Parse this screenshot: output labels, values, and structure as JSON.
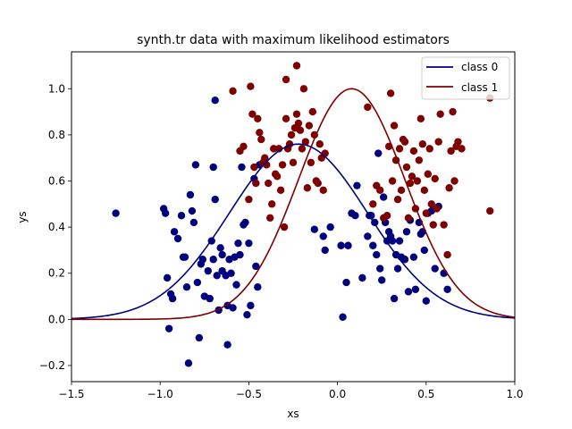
{
  "chart_data": {
    "type": "scatter",
    "title": "synth.tr data with maximum likelihood estimators",
    "xlabel": "xs",
    "ylabel": "ys",
    "xlim": [
      -1.5,
      1.0
    ],
    "ylim": [
      -0.27,
      1.16
    ],
    "x_ticks": [
      -1.5,
      -1.0,
      -0.5,
      0.0,
      0.5,
      1.0
    ],
    "y_ticks": [
      -0.2,
      0.0,
      0.2,
      0.4,
      0.6,
      0.8,
      1.0
    ],
    "x_tick_labels": [
      "−1.5",
      "−1.0",
      "−0.5",
      "0.0",
      "0.5",
      "1.0"
    ],
    "y_tick_labels": [
      "−0.2",
      "0.0",
      "0.2",
      "0.4",
      "0.6",
      "0.8",
      "1.0"
    ],
    "grid": false,
    "legend_position": "top-right",
    "series": [
      {
        "name": "class 0",
        "color": "#00007f",
        "curve": {
          "type": "gaussian",
          "amplitude": 0.76,
          "mean": -0.22,
          "sd": 0.39
        },
        "points": [
          [
            -1.25,
            0.46
          ],
          [
            -0.98,
            0.48
          ],
          [
            -0.97,
            0.46
          ],
          [
            -0.96,
            0.18
          ],
          [
            -0.95,
            -0.04
          ],
          [
            -0.94,
            0.11
          ],
          [
            -0.93,
            0.09
          ],
          [
            -0.92,
            0.38
          ],
          [
            -0.9,
            0.35
          ],
          [
            -0.88,
            0.45
          ],
          [
            -0.87,
            0.27
          ],
          [
            -0.86,
            0.27
          ],
          [
            -0.85,
            0.14
          ],
          [
            -0.84,
            -0.19
          ],
          [
            -0.83,
            0.54
          ],
          [
            -0.82,
            0.47
          ],
          [
            -0.81,
            0.42
          ],
          [
            -0.8,
            0.67
          ],
          [
            -0.79,
            0.16
          ],
          [
            -0.78,
            -0.08
          ],
          [
            -0.77,
            0.24
          ],
          [
            -0.76,
            0.26
          ],
          [
            -0.75,
            0.1
          ],
          [
            -0.73,
            0.21
          ],
          [
            -0.72,
            0.09
          ],
          [
            -0.71,
            0.34
          ],
          [
            -0.7,
            0.26
          ],
          [
            -0.7,
            0.66
          ],
          [
            -0.69,
            0.52
          ],
          [
            -0.69,
            0.95
          ],
          [
            -0.68,
            0.19
          ],
          [
            -0.67,
            0.04
          ],
          [
            -0.66,
            0.31
          ],
          [
            -0.65,
            0.21
          ],
          [
            -0.65,
            0.28
          ],
          [
            -0.63,
            0.19
          ],
          [
            -0.62,
            0.06
          ],
          [
            -0.62,
            -0.11
          ],
          [
            -0.61,
            0.26
          ],
          [
            -0.6,
            0.2
          ],
          [
            -0.59,
            0.05
          ],
          [
            -0.58,
            0.27
          ],
          [
            -0.57,
            0.15
          ],
          [
            -0.56,
            0.33
          ],
          [
            -0.55,
            0.28
          ],
          [
            -0.54,
            0.66
          ],
          [
            -0.53,
            0.41
          ],
          [
            -0.52,
            0.42
          ],
          [
            -0.51,
            0.02
          ],
          [
            -0.5,
            0.33
          ],
          [
            -0.49,
            0.06
          ],
          [
            -0.47,
            0.61
          ],
          [
            -0.46,
            0.23
          ],
          [
            -0.45,
            0.14
          ],
          [
            -0.44,
            0.67
          ],
          [
            -0.13,
            0.39
          ],
          [
            -0.08,
            0.36
          ],
          [
            -0.07,
            0.3
          ],
          [
            -0.04,
            0.4
          ],
          [
            0.02,
            0.32
          ],
          [
            0.03,
            0.01
          ],
          [
            0.05,
            0.16
          ],
          [
            0.06,
            0.32
          ],
          [
            0.08,
            0.46
          ],
          [
            0.1,
            0.45
          ],
          [
            0.11,
            0.58
          ],
          [
            0.14,
            0.18
          ],
          [
            0.17,
            0.36
          ],
          [
            0.18,
            0.45
          ],
          [
            0.19,
            0.45
          ],
          [
            0.2,
            0.32
          ],
          [
            0.21,
            0.42
          ],
          [
            0.22,
            0.28
          ],
          [
            0.23,
            0.72
          ],
          [
            0.24,
            0.22
          ],
          [
            0.25,
            0.17
          ],
          [
            0.26,
            0.53
          ],
          [
            0.27,
            0.42
          ],
          [
            0.28,
            0.34
          ],
          [
            0.29,
            0.38
          ],
          [
            0.3,
            0.36
          ],
          [
            0.31,
            0.34
          ],
          [
            0.32,
            0.09
          ],
          [
            0.33,
            0.28
          ],
          [
            0.34,
            0.22
          ],
          [
            0.35,
            0.34
          ],
          [
            0.36,
            0.27
          ],
          [
            0.38,
            0.26
          ],
          [
            0.39,
            0.38
          ],
          [
            0.4,
            0.12
          ],
          [
            0.41,
            0.43
          ],
          [
            0.43,
            0.27
          ],
          [
            0.44,
            0.13
          ],
          [
            0.46,
            0.42
          ],
          [
            0.47,
            0.37
          ],
          [
            0.48,
            0.38
          ],
          [
            0.49,
            0.3
          ],
          [
            0.5,
            0.08
          ],
          [
            0.51,
            0.46
          ],
          [
            0.53,
            0.47
          ],
          [
            0.55,
            0.22
          ],
          [
            0.57,
            0.49
          ],
          [
            0.6,
            0.2
          ],
          [
            0.62,
            0.13
          ]
        ]
      },
      {
        "name": "class 1",
        "color": "#7f0000",
        "curve": {
          "type": "gaussian",
          "amplitude": 1.0,
          "mean": 0.08,
          "sd": 0.3
        },
        "points": [
          [
            -0.59,
            0.99
          ],
          [
            -0.55,
            0.73
          ],
          [
            -0.53,
            0.75
          ],
          [
            -0.5,
            0.52
          ],
          [
            -0.49,
            1.01
          ],
          [
            -0.48,
            0.89
          ],
          [
            -0.47,
            0.66
          ],
          [
            -0.46,
            0.59
          ],
          [
            -0.45,
            0.87
          ],
          [
            -0.44,
            0.81
          ],
          [
            -0.43,
            0.78
          ],
          [
            -0.42,
            0.68
          ],
          [
            -0.41,
            0.7
          ],
          [
            -0.4,
            0.67
          ],
          [
            -0.39,
            0.59
          ],
          [
            -0.38,
            0.44
          ],
          [
            -0.37,
            0.5
          ],
          [
            -0.36,
            0.74
          ],
          [
            -0.35,
            0.63
          ],
          [
            -0.34,
            0.62
          ],
          [
            -0.33,
            0.74
          ],
          [
            -0.32,
            0.56
          ],
          [
            -0.31,
            0.67
          ],
          [
            -0.3,
            0.4
          ],
          [
            -0.29,
            0.87
          ],
          [
            -0.29,
            1.04
          ],
          [
            -0.28,
            0.74
          ],
          [
            -0.27,
            0.76
          ],
          [
            -0.26,
            0.8
          ],
          [
            -0.25,
            0.68
          ],
          [
            -0.24,
            0.83
          ],
          [
            -0.23,
            0.89
          ],
          [
            -0.22,
            0.85
          ],
          [
            -0.21,
            0.82
          ],
          [
            -0.2,
            0.74
          ],
          [
            -0.19,
            1.0
          ],
          [
            -0.18,
            0.77
          ],
          [
            -0.17,
            0.57
          ],
          [
            -0.16,
            0.84
          ],
          [
            -0.15,
            0.68
          ],
          [
            -0.14,
            0.9
          ],
          [
            -0.13,
            0.8
          ],
          [
            -0.12,
            0.6
          ],
          [
            -0.11,
            0.59
          ],
          [
            -0.1,
            0.76
          ],
          [
            -0.09,
            0.7
          ],
          [
            -0.08,
            0.56
          ],
          [
            -0.07,
            0.72
          ],
          [
            -0.23,
            1.1
          ],
          [
            0.17,
            0.92
          ],
          [
            0.2,
            0.5
          ],
          [
            0.22,
            0.58
          ],
          [
            0.24,
            0.56
          ],
          [
            0.26,
            0.44
          ],
          [
            0.28,
            0.45
          ],
          [
            0.29,
            0.75
          ],
          [
            0.3,
            0.98
          ],
          [
            0.31,
            0.6
          ],
          [
            0.32,
            0.84
          ],
          [
            0.33,
            0.69
          ],
          [
            0.34,
            0.52
          ],
          [
            0.35,
            0.74
          ],
          [
            0.36,
            0.56
          ],
          [
            0.37,
            0.78
          ],
          [
            0.38,
            0.77
          ],
          [
            0.39,
            0.66
          ],
          [
            0.4,
            0.44
          ],
          [
            0.41,
            0.59
          ],
          [
            0.42,
            0.62
          ],
          [
            0.43,
            0.73
          ],
          [
            0.44,
            0.48
          ],
          [
            0.45,
            0.6
          ],
          [
            0.46,
            0.69
          ],
          [
            0.47,
            0.87
          ],
          [
            0.48,
            0.76
          ],
          [
            0.49,
            0.56
          ],
          [
            0.5,
            0.46
          ],
          [
            0.51,
            0.63
          ],
          [
            0.52,
            0.74
          ],
          [
            0.53,
            0.5
          ],
          [
            0.54,
            0.41
          ],
          [
            0.55,
            0.61
          ],
          [
            0.56,
            0.48
          ],
          [
            0.57,
            0.77
          ],
          [
            0.58,
            0.89
          ],
          [
            0.6,
            0.41
          ],
          [
            0.62,
            0.28
          ],
          [
            0.63,
            0.57
          ],
          [
            0.64,
            0.73
          ],
          [
            0.65,
            0.9
          ],
          [
            0.66,
            0.6
          ],
          [
            0.67,
            0.75
          ],
          [
            0.68,
            0.77
          ],
          [
            0.7,
            0.74
          ],
          [
            0.86,
            0.96
          ],
          [
            0.86,
            0.47
          ]
        ]
      }
    ]
  }
}
